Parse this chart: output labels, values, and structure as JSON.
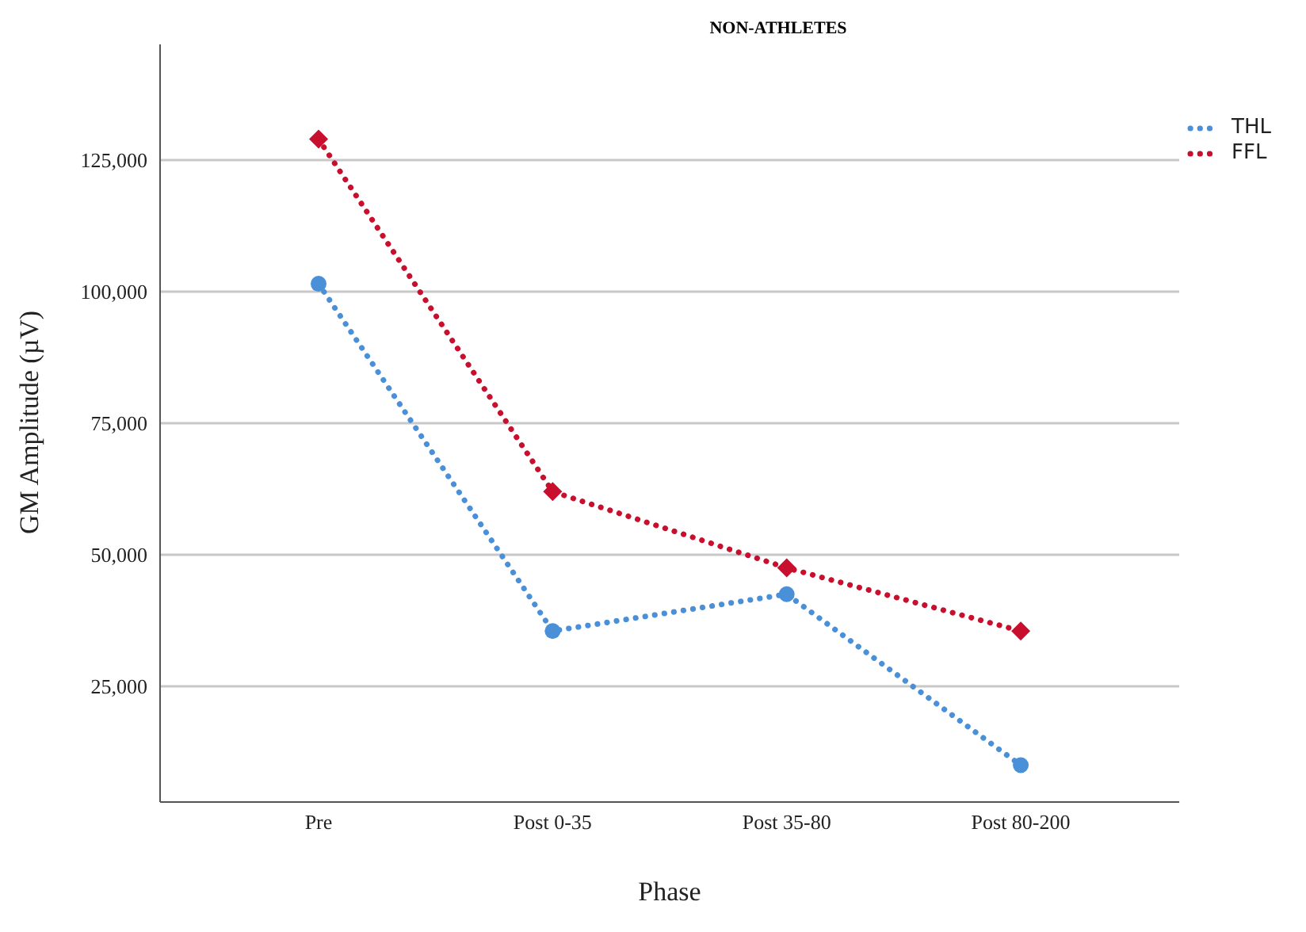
{
  "chart_data": {
    "type": "line",
    "title": "NON-ATHLETES",
    "xlabel": "Phase",
    "ylabel": "GM Amplitude (µV)",
    "categories": [
      "Pre",
      "Post 0-35",
      "Post 35-80",
      "Post 80-200"
    ],
    "series": [
      {
        "name": "THL",
        "color": "#4a90d9",
        "marker": "circle",
        "values": [
          101500,
          35500,
          42500,
          10000
        ]
      },
      {
        "name": "FFL",
        "color": "#c8102e",
        "marker": "diamond",
        "values": [
          129000,
          62000,
          47500,
          35500
        ]
      }
    ],
    "ylim": [
      3000,
      147000
    ],
    "yticks": [
      {
        "value": 25000,
        "label": "25,000"
      },
      {
        "value": 50000,
        "label": "50,000"
      },
      {
        "value": 75000,
        "label": "75,000"
      },
      {
        "value": 100000,
        "label": "100,000"
      },
      {
        "value": 125000,
        "label": "125,000"
      }
    ],
    "grid": "y",
    "legend": "top right",
    "line_style": "dotted"
  }
}
